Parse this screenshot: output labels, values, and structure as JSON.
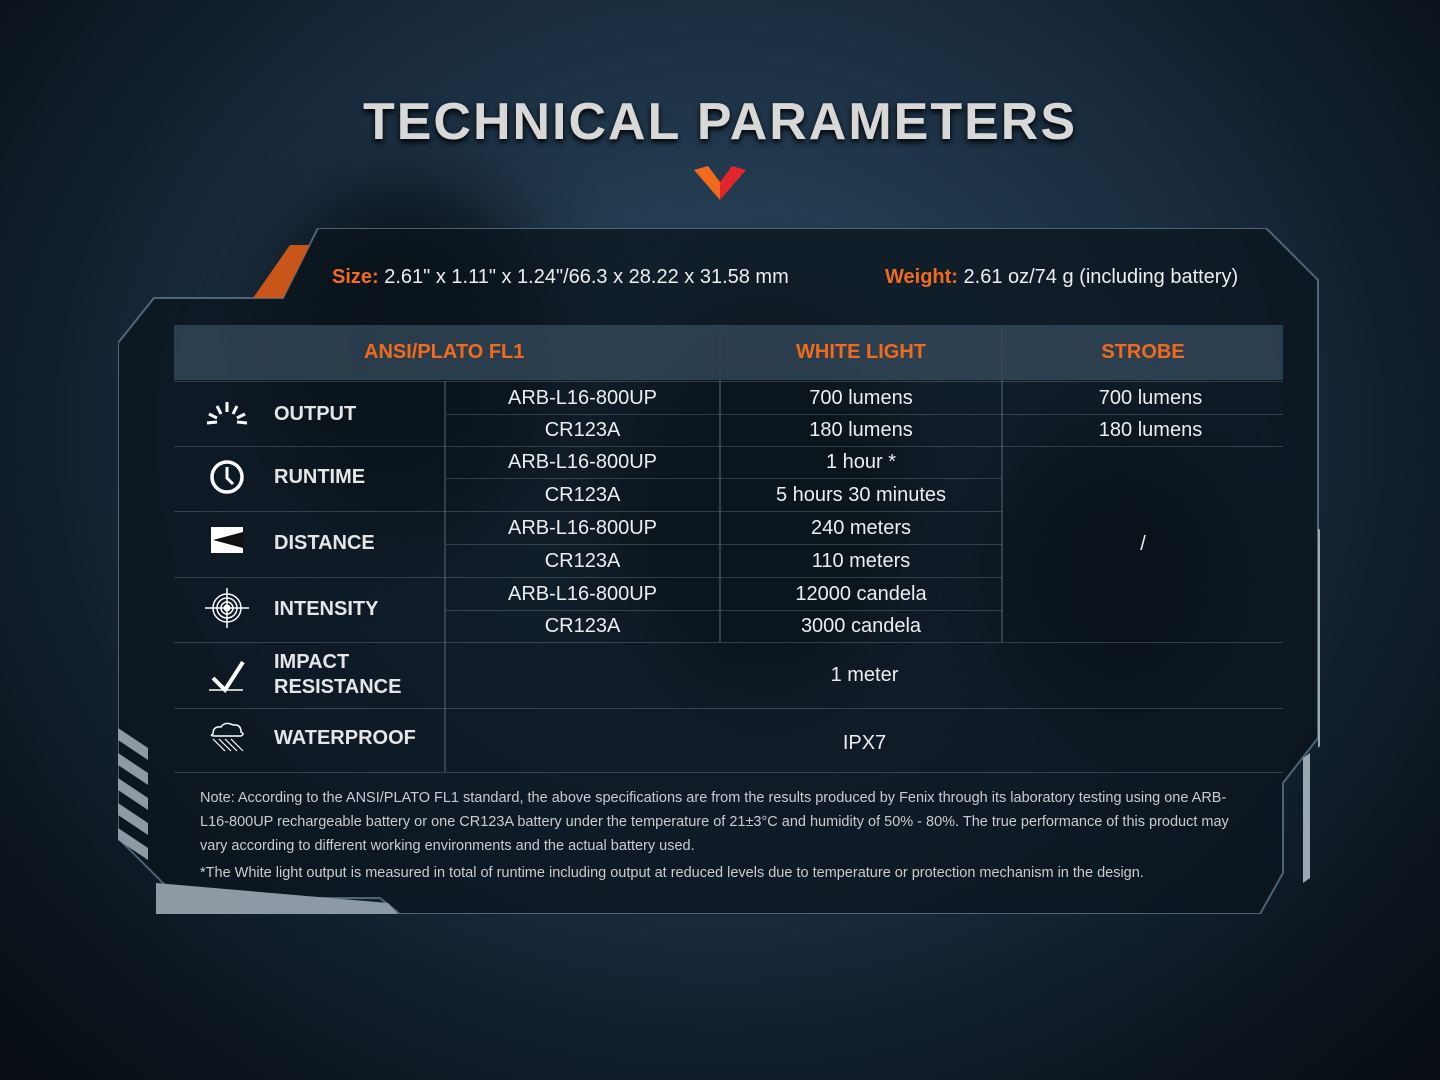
{
  "title": "TECHNICAL PARAMETERS",
  "accent": "#f26b1d",
  "size": {
    "label": "Size:",
    "value": "2.61\" x 1.11\" x 1.24\"/66.3 x 28.22 x 31.58 mm"
  },
  "weight": {
    "label": "Weight:",
    "value": "2.61 oz/74 g (including battery)"
  },
  "table": {
    "headers": [
      "ANSI/PLATO FL1",
      "WHITE LIGHT",
      "STROBE"
    ],
    "rows": [
      {
        "label": "OUTPUT",
        "icon": "sunburst-icon",
        "sub": [
          {
            "battery": "ARB-L16-800UP",
            "white": "700 lumens",
            "strobe": "700 lumens"
          },
          {
            "battery": "CR123A",
            "white": "180 lumens",
            "strobe": "180 lumens"
          }
        ]
      },
      {
        "label": "RUNTIME",
        "icon": "clock-icon",
        "sub": [
          {
            "battery": "ARB-L16-800UP",
            "white": "1 hour *"
          },
          {
            "battery": "CR123A",
            "white": "5 hours 30 minutes"
          }
        ]
      },
      {
        "label": "DISTANCE",
        "icon": "beam-distance-icon",
        "sub": [
          {
            "battery": "ARB-L16-800UP",
            "white": "240 meters"
          },
          {
            "battery": "CR123A",
            "white": "110 meters"
          }
        ]
      },
      {
        "label": "INTENSITY",
        "icon": "target-icon",
        "sub": [
          {
            "battery": "ARB-L16-800UP",
            "white": "12000 candela"
          },
          {
            "battery": "CR123A",
            "white": "3000 candela"
          }
        ]
      },
      {
        "label_1": "IMPACT",
        "label_2": "RESISTANCE",
        "icon": "impact-icon",
        "value": "1 meter"
      },
      {
        "label": "WATERPROOF",
        "icon": "rain-cloud-icon",
        "value": "IPX7"
      }
    ],
    "strobe_na": "/"
  },
  "notes": [
    "Note: According to the ANSI/PLATO FL1 standard, the above specifications are from the results produced by Fenix through its laboratory testing using one ARB-L16-800UP rechargeable battery or one CR123A battery under the temperature of 21±3°C and humidity of 50% - 80%. The true performance of this product may vary according to different working environments and the actual battery used.",
    "*The White light output is measured in total of runtime including output at reduced levels due to temperature or protection mechanism in the design."
  ]
}
